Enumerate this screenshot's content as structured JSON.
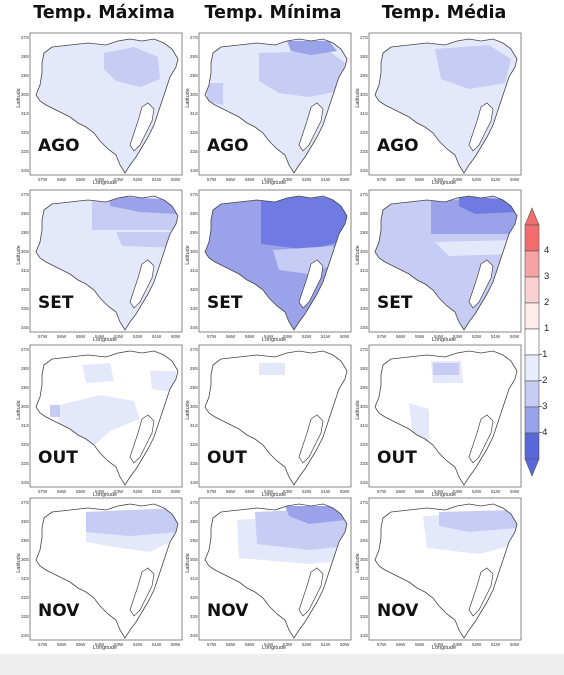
{
  "columns": [
    "Temp. Máxima",
    "Temp. Mínima",
    "Temp. Média"
  ],
  "months": [
    "AGO",
    "SET",
    "OUT",
    "NOV"
  ],
  "axis_labels": {
    "x": "Longitude",
    "y": "Latitude"
  },
  "lon_ticks": [
    "57W",
    "56W",
    "55W",
    "54W",
    "53W",
    "52W",
    "51W",
    "50W"
  ],
  "lat_ticks": [
    "27S",
    "28S",
    "29S",
    "30S",
    "31S",
    "32S",
    "33S",
    "34S"
  ],
  "colorbar": {
    "ticks": [
      "4",
      "3",
      "2",
      "1",
      "-1",
      "-2",
      "-3",
      "-4"
    ],
    "colors": {
      "level_4": "#f26d6d",
      "level_3": "#f6a3a3",
      "level_2": "#fad0d0",
      "level_1": "#fdecec",
      "neutral": "#ffffff",
      "level_m1": "#e9ecfb",
      "level_m2": "#c6ccf3",
      "level_m3": "#9aa3ea",
      "level_m4": "#5a66dc"
    }
  },
  "map_colors": {
    "outline": "#444444",
    "l1": "#e4e8fb",
    "l2": "#c6ccf3",
    "l3": "#9aa3ea",
    "l4": "#6f7be2"
  }
}
